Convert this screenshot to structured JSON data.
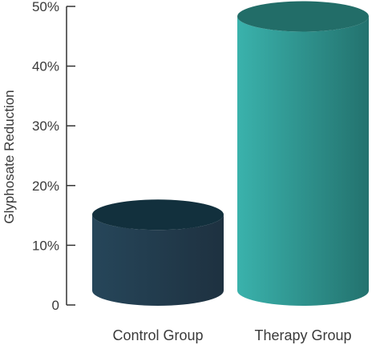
{
  "chart_data": {
    "type": "bar",
    "title": "",
    "xlabel": "",
    "ylabel": "Glyphosate Reduction",
    "ylim": [
      0,
      50
    ],
    "yticks": [
      0,
      10,
      20,
      30,
      40,
      50
    ],
    "ytick_labels": [
      "0",
      "10%",
      "20%",
      "30%",
      "40%",
      "50%"
    ],
    "categories": [
      "Control Group",
      "Therapy Group"
    ],
    "values": [
      13,
      47
    ],
    "grid": false,
    "legend": "none",
    "colors": {
      "control": [
        "#26465a",
        "#1e3140"
      ],
      "control_top": "#12303d",
      "therapy": [
        "#3ab2ac",
        "#23726e"
      ],
      "therapy_top": "#226d68",
      "axis": "#333333"
    }
  }
}
